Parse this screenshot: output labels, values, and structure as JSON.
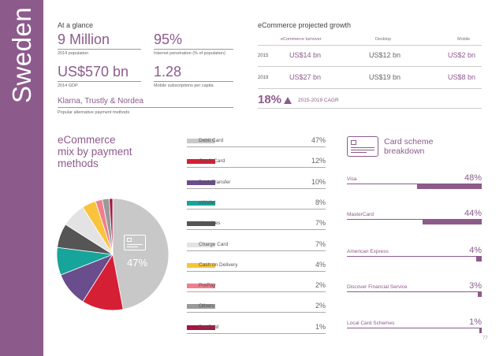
{
  "sidebar": {
    "country": "Sweden"
  },
  "glance": {
    "title": "At a glance",
    "stats": [
      {
        "value": "9 Million",
        "caption": "2014 population"
      },
      {
        "value": "95%",
        "caption": "Internet penetration (% of population)"
      },
      {
        "value": "US$570 bn",
        "caption": "2014 GDP"
      },
      {
        "value": "1.28",
        "caption": "Mobile subscriptions per capita"
      }
    ],
    "providers": "Klarna, Trustly & Nordea",
    "providers_caption": "Popular alternative payment methods"
  },
  "growth": {
    "title": "eCommerce projected growth",
    "headers": [
      "eCommerce turnover",
      "Desktop",
      "Mobile"
    ],
    "rows": [
      {
        "year": "2015",
        "turnover": "US$14 bn",
        "desktop": "US$12 bn",
        "mobile": "US$2 bn"
      },
      {
        "year": "2019",
        "turnover": "US$27 bn",
        "desktop": "US$19 bn",
        "mobile": "US$8 bn"
      }
    ],
    "cagr_value": "18%",
    "cagr_label": "2015-2019 CAGR"
  },
  "payment_mix": {
    "title_lines": [
      "eCommerce",
      "mix by payment",
      "methods"
    ],
    "highlight": "47%"
  },
  "card_scheme": {
    "title_lines": [
      "Card scheme",
      "breakdown"
    ]
  },
  "page_number": "77",
  "chart_data": [
    {
      "type": "pie",
      "title": "eCommerce mix by payment methods",
      "categories": [
        "Debit Card",
        "Credit Card",
        "Bank Transfer",
        "eWallet",
        "eInvoices",
        "Charge Card",
        "Cash on Delivery",
        "PrePay",
        "Others",
        "Pre-Paid"
      ],
      "values": [
        47,
        12,
        10,
        8,
        7,
        7,
        4,
        2,
        2,
        1
      ],
      "labels": [
        "47%",
        "12%",
        "10%",
        "8%",
        "7%",
        "7%",
        "4%",
        "2%",
        "2%",
        "1%"
      ],
      "colors": [
        "#c8c8c8",
        "#d51f35",
        "#6a4d8c",
        "#17a49a",
        "#555555",
        "#e3e3e3",
        "#f8c43b",
        "#ef7f8e",
        "#9a9a9a",
        "#a8163f"
      ]
    },
    {
      "type": "bar",
      "title": "Card scheme breakdown",
      "categories": [
        "Visa",
        "MasterCard",
        "American Express",
        "Discover Financial Service",
        "Local Card Schemes"
      ],
      "values": [
        48,
        44,
        4,
        3,
        1
      ],
      "labels": [
        "48%",
        "44%",
        "4%",
        "3%",
        "1%"
      ],
      "xlim": [
        0,
        48
      ]
    }
  ]
}
